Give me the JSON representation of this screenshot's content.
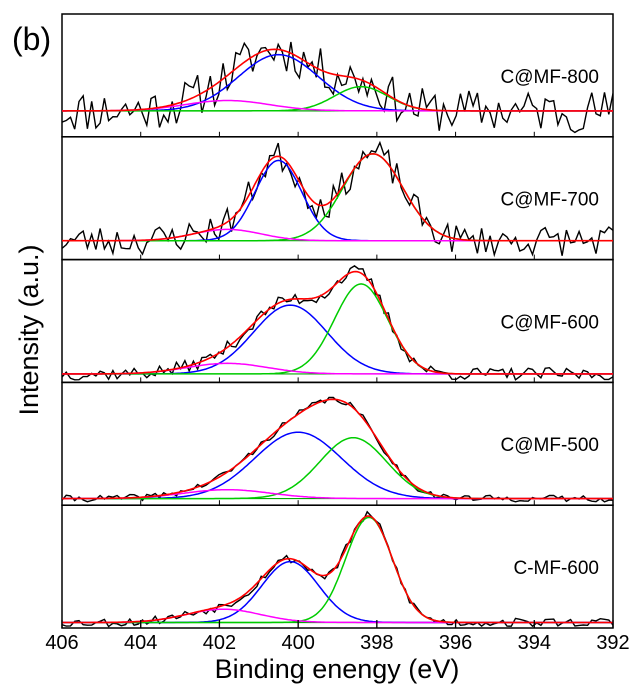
{
  "chart_data": {
    "type": "line",
    "figure_label": "(b)",
    "xlabel": "Binding enengy (eV)",
    "ylabel": "Intensity (a.u.)",
    "xlim": [
      406,
      392
    ],
    "x_reversed": true,
    "x_ticks": [
      406,
      404,
      402,
      400,
      398,
      396,
      394,
      392
    ],
    "y_ticks_shown": false,
    "grid": false,
    "colors": {
      "measured": "#000000",
      "envelope": "#ff0000",
      "peak_high": "#0000ff",
      "peak_low": "#00cc00",
      "peak_minor": "#ff00ff",
      "baseline": "#00aa00"
    },
    "panels": [
      {
        "name": "C@MF-800",
        "ylim": [
          -0.3,
          1.12
        ],
        "noise": 0.25,
        "seed": 11,
        "peaks": [
          {
            "role": "peak_high",
            "center": 400.5,
            "fwhm": 2.4,
            "height": 0.65
          },
          {
            "role": "peak_low",
            "center": 398.4,
            "fwhm": 1.6,
            "height": 0.28
          },
          {
            "role": "peak_minor",
            "center": 401.8,
            "fwhm": 2.5,
            "height": 0.12
          }
        ]
      },
      {
        "name": "C@MF-700",
        "ylim": [
          -0.2,
          1.1
        ],
        "noise": 0.16,
        "seed": 23,
        "peaks": [
          {
            "role": "peak_high",
            "center": 400.5,
            "fwhm": 1.4,
            "height": 0.85
          },
          {
            "role": "peak_low",
            "center": 398.1,
            "fwhm": 1.8,
            "height": 0.92
          },
          {
            "role": "peak_minor",
            "center": 401.8,
            "fwhm": 2.0,
            "height": 0.12
          }
        ]
      },
      {
        "name": "C@MF-600",
        "ylim": [
          -0.08,
          1.08
        ],
        "noise": 0.06,
        "seed": 37,
        "peaks": [
          {
            "role": "peak_high",
            "center": 400.2,
            "fwhm": 2.2,
            "height": 0.65
          },
          {
            "role": "peak_low",
            "center": 398.4,
            "fwhm": 1.6,
            "height": 0.85
          },
          {
            "role": "peak_minor",
            "center": 401.8,
            "fwhm": 2.4,
            "height": 0.1
          }
        ]
      },
      {
        "name": "C@MF-500",
        "ylim": [
          -0.06,
          1.05
        ],
        "noise": 0.03,
        "seed": 41,
        "peaks": [
          {
            "role": "peak_high",
            "center": 400.0,
            "fwhm": 2.6,
            "height": 0.6
          },
          {
            "role": "peak_low",
            "center": 398.6,
            "fwhm": 2.0,
            "height": 0.55
          },
          {
            "role": "peak_minor",
            "center": 401.8,
            "fwhm": 2.6,
            "height": 0.08
          }
        ]
      },
      {
        "name": "C-MF-600",
        "ylim": [
          -0.05,
          1.06
        ],
        "noise": 0.04,
        "seed": 53,
        "peaks": [
          {
            "role": "peak_high",
            "center": 400.2,
            "fwhm": 1.7,
            "height": 0.55
          },
          {
            "role": "peak_low",
            "center": 398.2,
            "fwhm": 1.4,
            "height": 0.95
          },
          {
            "role": "peak_minor",
            "center": 401.9,
            "fwhm": 2.2,
            "height": 0.12
          }
        ]
      }
    ]
  }
}
